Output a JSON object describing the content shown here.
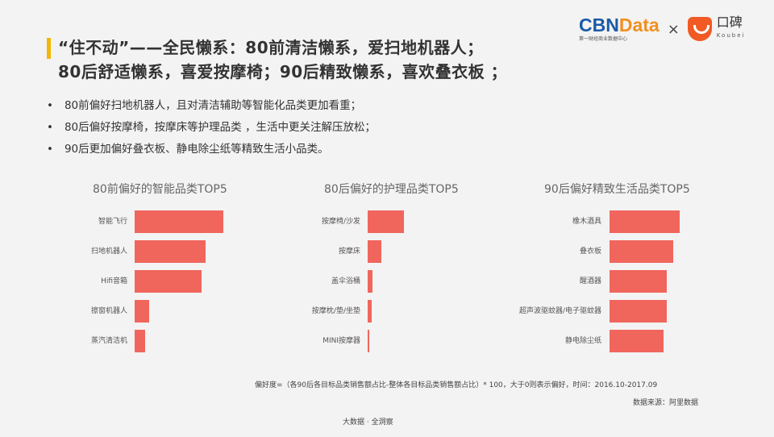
{
  "title": {
    "line1": "“住不动”——全民懒系：80前清洁懒系，爱扫地机器人；",
    "line2": "80后舒适懒系，喜爱按摩椅；90后精致懒系，喜欢叠衣板 ；"
  },
  "logo": {
    "cbn_a": "CBN",
    "cbn_b": "Data",
    "cbn_sub": "第一财经商业数据中心",
    "times": "×",
    "koubei": "口碑",
    "koubei_en": "Koubei"
  },
  "bullets": [
    "80前偏好扫地机器人，且对清洁辅助等智能化品类更加看重；",
    "80后偏好按摩椅，按摩床等护理品类 ，生活中更关注解压放松；",
    "90后更加偏好叠衣板、静电除尘纸等精致生活小品类。"
  ],
  "colors": {
    "bar": "#f0665d",
    "accent": "#f2b705"
  },
  "chart_data": [
    {
      "type": "bar",
      "orientation": "horizontal",
      "title": "80前偏好的智能品类TOP5",
      "categories": [
        "智能飞行",
        "扫地机器人",
        "Hifi音箱",
        "擦窗机器人",
        "蒸汽清洁机"
      ],
      "values": [
        110,
        88,
        83,
        18,
        13
      ]
    },
    {
      "type": "bar",
      "orientation": "horizontal",
      "title": "80后偏好的护理品类TOP5",
      "categories": [
        "按摩椅/沙发",
        "按摩床",
        "盖伞浴桶",
        "按摩枕/垫/坐垫",
        "MINI按摩器"
      ],
      "values": [
        45,
        17,
        6,
        5,
        1.5
      ]
    },
    {
      "type": "bar",
      "orientation": "horizontal",
      "title": "90后偏好精致生活品类TOP5",
      "categories": [
        "橡木酒具",
        "叠衣板",
        "醒酒器",
        "超声波驱蚊器/电子驱蚊器",
        "静电除尘纸"
      ],
      "values": [
        87,
        79,
        71,
        71,
        67
      ]
    }
  ],
  "note": "偏好度=（各90后各目标品类销售额占比-整体各目标品类销售额占比）* 100，大于0则表示偏好，时间：2016.10-2017.09",
  "source": "数据来源：阿里数据",
  "footer": "大数据 · 全洞察"
}
